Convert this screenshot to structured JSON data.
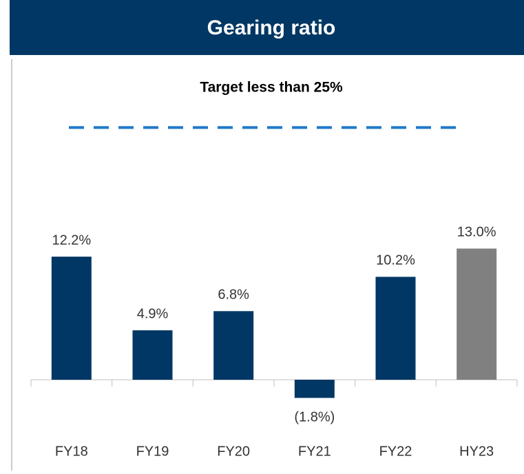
{
  "chart_data": {
    "type": "bar",
    "title": "Gearing ratio",
    "subtitle": "Target less than 25%",
    "categories": [
      "FY18",
      "FY19",
      "FY20",
      "FY21",
      "FY22",
      "HY23"
    ],
    "values": [
      12.2,
      4.9,
      6.8,
      -1.8,
      10.2,
      13.0
    ],
    "value_labels": [
      "12.2%",
      "4.9%",
      "6.8%",
      "(1.8%)",
      "10.2%",
      "13.0%"
    ],
    "colors": [
      "#003764",
      "#003764",
      "#003764",
      "#003764",
      "#003764",
      "#808080"
    ],
    "target_line": {
      "value": 25,
      "color": "#1f78c8"
    },
    "ylim": [
      -6,
      30
    ]
  }
}
